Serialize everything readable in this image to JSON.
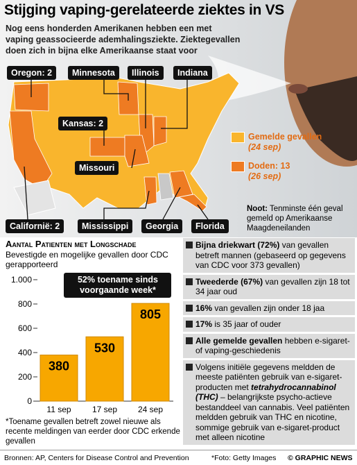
{
  "header": {
    "title": "Stijging vaping-gerelateerde ziektes in VS",
    "subtitle": "Nog eens honderden Amerikanen hebben een met vaping geassocieerde ademhalingsziekte. Ziektegevallen doen zich in bijna elke Amerikaanse staat voor"
  },
  "map": {
    "labels": [
      "Oregon: 2",
      "Minnesota",
      "Illinois",
      "Indiana",
      "Kansas: 2",
      "Missouri",
      "Californië: 2",
      "Mississippi",
      "Georgia",
      "Florida"
    ],
    "legend": [
      {
        "label": "Gemelde gevallen",
        "date": "(24 sep)",
        "color": "#f9b52d"
      },
      {
        "label": "Doden: 13",
        "date": "(26 sep)",
        "color": "#ee7b22"
      }
    ],
    "note": {
      "bold": "Noot:",
      "text": "Tenminste één geval gemeld op Amerikaanse Maagdeneilanden"
    }
  },
  "chart_data": {
    "type": "bar",
    "title": "Aantal Patienten met Longschade",
    "subtitle": "Bevestigde en mogelijke gevallen door CDC gerapporteerd",
    "categories": [
      "11 sep",
      "17 sep",
      "24 sep"
    ],
    "values": [
      380,
      530,
      805
    ],
    "color": "#f7a700",
    "ylim": [
      0,
      1000
    ],
    "yticks": [
      0,
      200,
      400,
      600,
      800,
      {
        "value": 1000,
        "label": "1.000"
      }
    ],
    "annotation": "52% toename sinds voorgaande week*",
    "note": "*Toename gevallen betreft zowel nieuwe als recente meldingen van eerder door CDC erkende gevallen"
  },
  "facts": [
    [
      {
        "text": "Bijna driekwart (72%)",
        "bold": true
      },
      {
        "text": " van gevallen betreft mannen (gebaseerd op gegevens van CDC voor 373 gevallen)"
      }
    ],
    [
      {
        "text": "Tweederde (67%)",
        "bold": true
      },
      {
        "text": " van gevallen zijn 18 tot 34 jaar oud"
      }
    ],
    [
      {
        "text": "16%",
        "bold": true
      },
      {
        "text": " van gevallen zijn onder 18 jaa"
      }
    ],
    [
      {
        "text": "17%",
        "bold": true
      },
      {
        "text": " is 35 jaar of ouder"
      }
    ],
    [
      {
        "text": "Alle gemelde gevallen",
        "bold": true
      },
      {
        "text": " hebben e-sigaret- of vaping-geschiedenis"
      }
    ],
    [
      {
        "text": "Volgens initiële gegevens meldden de meeste patiënten gebruik van e-sigaret-producten met "
      },
      {
        "text": "tetrahydrocannabinol (THC)",
        "bold": true,
        "italic": true
      },
      {
        "text": " – belangrijkste psycho-actieve bestanddeel van cannabis. Veel patiënten meldden gebruik van THC en nicotine, sommige gebruik van e-sigaret-product met alleen nicotine"
      }
    ]
  ],
  "footer": {
    "sources": "Bronnen: AP, Centers for Disease Control and Prevention",
    "photo": "*Foto: Getty Images",
    "copyright": "© GRAPHIC NEWS"
  }
}
